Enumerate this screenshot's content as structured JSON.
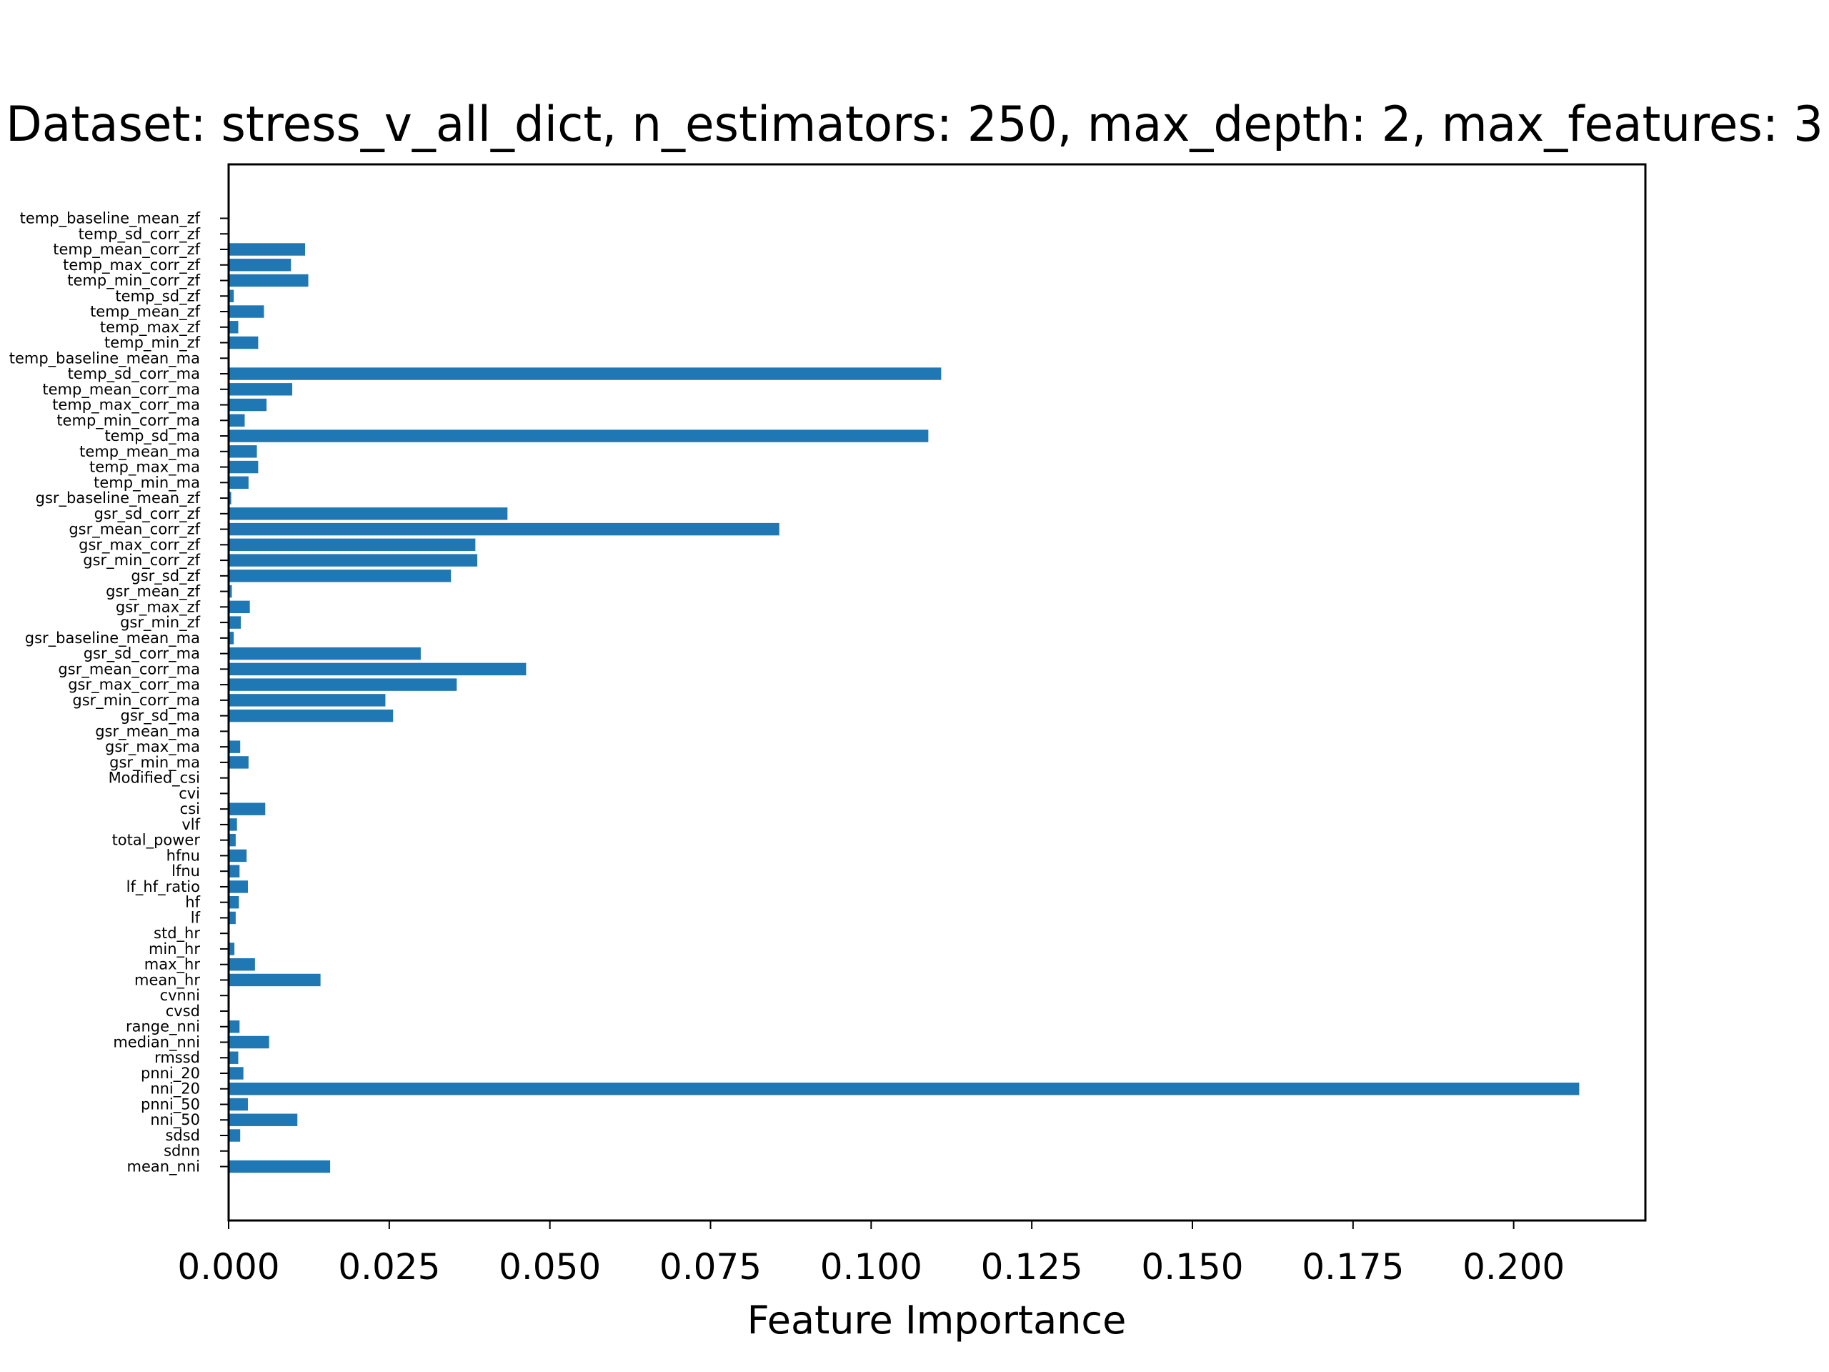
{
  "chart_data": {
    "type": "bar",
    "orientation": "horizontal",
    "title": "Dataset: stress_v_all_dict, n_estimators: 250, max_depth: 2, max_features: 3",
    "xlabel": "Feature Importance",
    "ylabel": "",
    "xlim": [
      0,
      0.2205
    ],
    "xticks": [
      "0.000",
      "0.025",
      "0.050",
      "0.075",
      "0.100",
      "0.125",
      "0.150",
      "0.175",
      "0.200"
    ],
    "grid": false,
    "bar_color": "#1f77b4",
    "categories": [
      "mean_nni",
      "sdnn",
      "sdsd",
      "nni_50",
      "pnni_50",
      "nni_20",
      "pnni_20",
      "rmssd",
      "median_nni",
      "range_nni",
      "cvsd",
      "cvnni",
      "mean_hr",
      "max_hr",
      "min_hr",
      "std_hr",
      "lf",
      "hf",
      "lf_hf_ratio",
      "lfnu",
      "hfnu",
      "total_power",
      "vlf",
      "csi",
      "cvi",
      "Modified_csi",
      "gsr_min_ma",
      "gsr_max_ma",
      "gsr_mean_ma",
      "gsr_sd_ma",
      "gsr_min_corr_ma",
      "gsr_max_corr_ma",
      "gsr_mean_corr_ma",
      "gsr_sd_corr_ma",
      "gsr_baseline_mean_ma",
      "gsr_min_zf",
      "gsr_max_zf",
      "gsr_mean_zf",
      "gsr_sd_zf",
      "gsr_min_corr_zf",
      "gsr_max_corr_zf",
      "gsr_mean_corr_zf",
      "gsr_sd_corr_zf",
      "gsr_baseline_mean_zf",
      "temp_min_ma",
      "temp_max_ma",
      "temp_mean_ma",
      "temp_sd_ma",
      "temp_min_corr_ma",
      "temp_max_corr_ma",
      "temp_mean_corr_ma",
      "temp_sd_corr_ma",
      "temp_baseline_mean_ma",
      "temp_min_zf",
      "temp_max_zf",
      "temp_mean_zf",
      "temp_sd_zf",
      "temp_min_corr_zf",
      "temp_max_corr_zf",
      "temp_mean_corr_zf",
      "temp_sd_corr_zf",
      "temp_baseline_mean_zf"
    ],
    "values": [
      0.0158,
      0.0,
      0.0018,
      0.0107,
      0.003,
      0.2102,
      0.0023,
      0.0015,
      0.0063,
      0.0017,
      0.0,
      0.0,
      0.0143,
      0.0041,
      0.0009,
      0.0,
      0.0011,
      0.0016,
      0.003,
      0.0017,
      0.0028,
      0.0011,
      0.0013,
      0.0057,
      0.0,
      0.0,
      0.0031,
      0.0018,
      0.0,
      0.0256,
      0.0244,
      0.0355,
      0.0463,
      0.0299,
      0.0008,
      0.0019,
      0.0033,
      0.0005,
      0.0346,
      0.0387,
      0.0384,
      0.0857,
      0.0434,
      0.0004,
      0.0031,
      0.0046,
      0.0044,
      0.1089,
      0.0025,
      0.0059,
      0.0099,
      0.1109,
      0.0,
      0.0046,
      0.0015,
      0.0055,
      0.0008,
      0.0124,
      0.0097,
      0.0119,
      0.0,
      0.0
    ]
  }
}
